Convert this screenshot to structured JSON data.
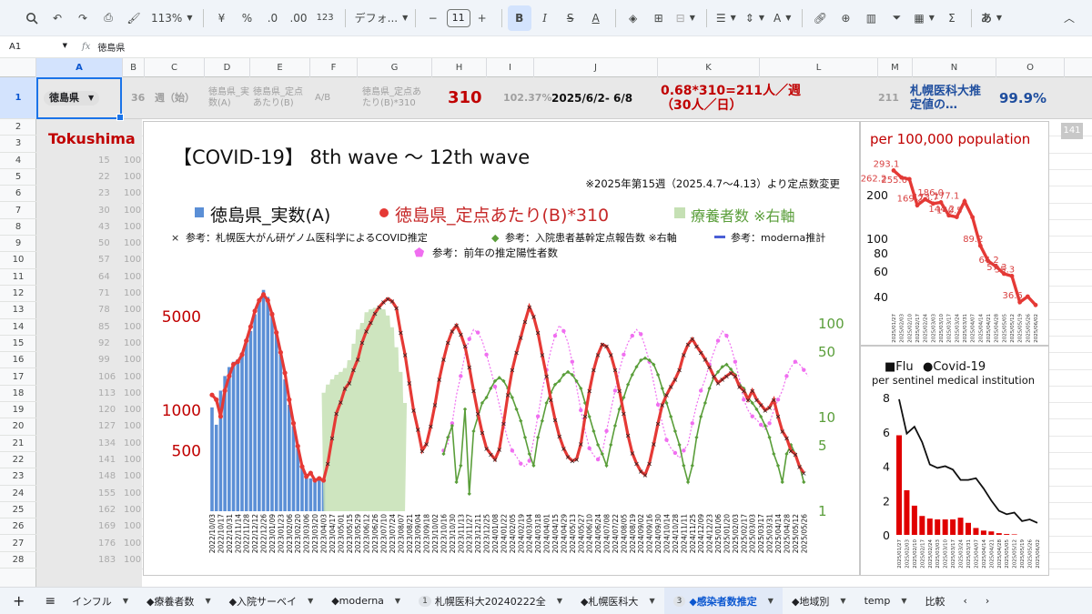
{
  "toolbar": {
    "zoom": "113%",
    "currency": "¥",
    "percent": "%",
    "dec_decrease": ".0",
    "dec_increase": ".00",
    "number_format": "123",
    "font_name": "デフォ...",
    "font_size": "11",
    "bold": "B",
    "italic": "I",
    "ime": "あ",
    "sum": "Σ"
  },
  "formula_bar": {
    "cell_ref": "A1",
    "fx": "fx",
    "value": "徳島県"
  },
  "columns": [
    "A",
    "B",
    "C",
    "D",
    "E",
    "F",
    "G",
    "H",
    "I",
    "J",
    "K",
    "L",
    "M",
    "N",
    "O"
  ],
  "rows": [
    "1",
    "2",
    "3",
    "4",
    "5",
    "6",
    "7",
    "8",
    "9",
    "10",
    "11",
    "12",
    "13",
    "14",
    "15",
    "16",
    "17",
    "18",
    "19",
    "20",
    "21",
    "22",
    "23",
    "24",
    "25",
    "26",
    "27",
    "28"
  ],
  "row1": {
    "a": "徳島県",
    "b": "36",
    "c": "週（始）",
    "d": "徳島県_実数(A)",
    "e": "徳島県_定点あたり(B)",
    "f": "A/B",
    "g": "徳島県_定点あたり(B)*310",
    "h": "310",
    "i": "102.37%",
    "j": "2025/6/2- 6/8",
    "k": "0.68*310=211人／週（30人／日）",
    "m": "211",
    "n": "札幌医科大推定値の…",
    "o": "99.9%"
  },
  "side_label": "Tokushima",
  "hidden_numbers": [
    "15",
    "22",
    "23",
    "30",
    "43",
    "50",
    "57",
    "64",
    "71",
    "78",
    "85",
    "92",
    "99",
    "106",
    "113",
    "120",
    "127",
    "134",
    "141",
    "148",
    "155",
    "162",
    "169",
    "176",
    "183"
  ],
  "hidden_col_b": "100",
  "scroll_badge": "141",
  "main_chart": {
    "title": "【COVID-19】 8th wave 〜 12th wave",
    "note": "※2025年第15週（2025.4.7〜4.13）より定点数変更",
    "legend1": [
      "徳島県_実数(A)",
      "徳島県_定点あたり(B)*310",
      "療養者数 ※右軸"
    ],
    "legend2": [
      "参考：札幌医大がん研ゲノム医科学によるCOVID推定",
      "参考：入院患者基幹定点報告数 ※右軸",
      "参考：moderna推計"
    ],
    "legend3": [
      "参考：前年の推定陽性者数"
    ],
    "left_ticks": [
      "5000",
      "1000",
      "500"
    ],
    "right_ticks": [
      "100",
      "50",
      "10",
      "5",
      "1"
    ],
    "x_labels": [
      "2022/10/03",
      "2022/10/17",
      "2022/10/31",
      "2022/11/14",
      "2022/11/28",
      "2022/12/12",
      "2022/12/26",
      "2023/01/09",
      "2023/01/23",
      "2023/02/06",
      "2023/02/20",
      "2023/03/06",
      "2023/03/20",
      "2023/04/03",
      "2023/04/17",
      "2023/05/01",
      "2023/05/15",
      "2023/05/29",
      "2023/06/12",
      "2023/06/26",
      "2023/07/10",
      "2023/07/24",
      "2023/08/07",
      "2023/08/21",
      "2023/09/04",
      "2023/09/18",
      "2023/10/02",
      "2023/10/16",
      "2023/10/30",
      "2023/11/13",
      "2023/11/27",
      "2023/12/11",
      "2023/12/25",
      "2024/01/08",
      "2024/01/22",
      "2024/02/05",
      "2024/02/19",
      "2024/03/04",
      "2024/03/18",
      "2024/04/01",
      "2024/04/15",
      "2024/04/29",
      "2024/05/13",
      "2024/05/27",
      "2024/06/10",
      "2024/06/24",
      "2024/07/08",
      "2024/07/22",
      "2024/08/05",
      "2024/08/19",
      "2024/09/02",
      "2024/09/16",
      "2024/09/30",
      "2024/10/14",
      "2024/10/28",
      "2024/11/11",
      "2024/11/25",
      "2024/12/09",
      "2024/12/23",
      "2025/01/06",
      "2025/01/20",
      "2025/02/03",
      "2025/02/17",
      "2025/03/03",
      "2025/03/17",
      "2025/03/31",
      "2025/04/14",
      "2025/04/28",
      "2025/05/12",
      "2025/05/26"
    ],
    "colors": {
      "actual": "#5b8fd6",
      "per_sentinel": "#e53935",
      "recuperating": "#c5e0b4",
      "sapporo": "#222222",
      "hospital": "#5a9e3a",
      "moderna": "#4a5fd6",
      "prev_year": "#f06ef0"
    }
  },
  "chart_per100k": {
    "title": "per 100,000 population",
    "ticks": [
      "200",
      "100",
      "80",
      "60",
      "40"
    ],
    "labels": [
      "293.1",
      "262.2",
      "255.6",
      "169.2",
      "186.0",
      "173.7",
      "177.1",
      "144.2",
      "140.5",
      "89.2",
      "64.2",
      "57.3",
      "55.3",
      "36.6"
    ],
    "x_labels": [
      "2025/01/27",
      "2025/02/03",
      "2025/02/10",
      "2025/02/17",
      "2025/02/24",
      "2025/03/03",
      "2025/03/10",
      "2025/03/17",
      "2025/03/24",
      "2025/03/31",
      "2025/04/07",
      "2025/04/14",
      "2025/04/21",
      "2025/04/28",
      "2025/05/05",
      "2025/05/12",
      "2025/05/19",
      "2025/05/26",
      "2025/06/02"
    ],
    "color": "#e53935"
  },
  "chart_flu": {
    "legend_flu": "■Flu",
    "legend_covid": "●Covid-19",
    "subtitle": "per sentinel medical institution",
    "ticks": [
      "8",
      "6",
      "4",
      "2",
      "0"
    ],
    "x_labels": [
      "2025/01/27",
      "2025/02/03",
      "2025/02/10",
      "2025/02/17",
      "2025/02/24",
      "2025/03/03",
      "2025/03/10",
      "2025/03/17",
      "2025/03/24",
      "2025/03/31",
      "2025/04/07",
      "2025/04/14",
      "2025/04/21",
      "2025/04/28",
      "2025/05/05",
      "2025/05/12",
      "2025/05/19",
      "2025/05/26",
      "2025/06/02"
    ],
    "flu_color": "#e00000",
    "covid_color": "#111111"
  },
  "chart_data": [
    {
      "type": "bar",
      "name": "main",
      "title": "【COVID-19】 8th wave 〜 12th wave",
      "log_scale": true,
      "weeks_total": 140,
      "series": [
        {
          "name": "徳島県_実数(A)",
          "kind": "bar",
          "start": 0,
          "values": [
            1050,
            780,
            1400,
            1800,
            2100,
            2300,
            2400,
            2700,
            3200,
            3900,
            5200,
            6800,
            7900,
            7000,
            5400,
            3900,
            2600,
            1700,
            1100,
            760,
            520,
            380,
            330,
            310,
            300,
            300,
            295
          ]
        },
        {
          "name": "療養者数 ※右軸",
          "kind": "area",
          "start": 26,
          "values": [
            18,
            22,
            25,
            28,
            30,
            33,
            40,
            60,
            85,
            100,
            130,
            140,
            145,
            150,
            140,
            120,
            90,
            55,
            30,
            14
          ]
        },
        {
          "name": "徳島県_定点あたり(B)*310",
          "kind": "line",
          "start": 0,
          "values": [
            1300,
            1200,
            900,
            1400,
            1800,
            2200,
            2300,
            2600,
            3300,
            4200,
            5500,
            6600,
            7300,
            6600,
            5200,
            3800,
            2700,
            1900,
            1200,
            800,
            540,
            380,
            320,
            340,
            300,
            310,
            300,
            400,
            620,
            950,
            1150,
            1450,
            1600,
            2000,
            2400,
            3200,
            3900,
            4500,
            5300,
            5900,
            6400,
            6800,
            6500,
            5800,
            3800,
            2600,
            1600,
            1000,
            720,
            500,
            560,
            760,
            1100,
            1700,
            2400,
            3200,
            3900,
            4300,
            3700,
            3000,
            2100,
            1400,
            950,
            680,
            520,
            470,
            430,
            510,
            800,
            1300,
            2000,
            2700,
            3500,
            4600,
            5900,
            5000,
            3800,
            2600,
            1800,
            1200,
            850,
            640,
            520,
            450,
            420,
            430,
            560,
            900,
            1400,
            2000,
            2600,
            3100,
            3000,
            2600,
            2000,
            1400,
            950,
            650,
            480,
            400,
            350,
            330,
            400,
            560,
            800,
            1100,
            1300,
            1500,
            1700,
            2000,
            2600,
            3100,
            3400,
            3000,
            2700,
            2400,
            2100,
            1800,
            1600,
            1700,
            1800,
            1900,
            1800,
            1500,
            1400,
            1200,
            1400,
            1200,
            1100,
            1000,
            1050,
            1200,
            900,
            700,
            620,
            500,
            470,
            380,
            340
          ]
        },
        {
          "name": "参考：前年の推定陽性者数",
          "kind": "line",
          "start": 54,
          "values": [
            500,
            560,
            800,
            1300,
            1800,
            2600,
            3400,
            4000,
            3800,
            3300,
            2600,
            2000,
            1500,
            1100,
            800,
            600,
            500,
            450,
            400,
            380,
            420,
            600,
            900,
            1400,
            2000,
            2800,
            3600,
            4300,
            3900,
            3200,
            2300,
            1500,
            1000,
            700,
            520,
            460,
            430,
            480,
            700,
            1000,
            1400,
            2000,
            2600,
            3200,
            3600,
            4000,
            3700,
            3000,
            2300,
            1600,
            1100,
            800,
            600,
            520,
            480,
            440,
            500,
            560,
            800,
            1100,
            1400,
            1700,
            2200,
            2700,
            3300,
            3900,
            3600,
            3000,
            2300,
            1700,
            1200,
            1000,
            900,
            850,
            780,
            720,
            800,
            1000,
            1200,
            1400,
            1800,
            2100,
            2300,
            2200,
            2000,
            1800
          ]
        },
        {
          "name": "参考：入院患者基幹定点報告数 ※右軸",
          "kind": "line",
          "start": 54,
          "values": [
            4,
            6,
            8,
            2,
            3,
            12,
            1.5,
            7,
            10,
            14,
            16,
            20,
            24,
            26,
            24,
            20,
            16,
            12,
            9,
            6,
            4,
            3,
            6,
            9,
            14,
            18,
            22,
            24,
            28,
            30,
            28,
            24,
            20,
            14,
            10,
            7,
            5,
            4,
            3,
            5,
            8,
            12,
            16,
            22,
            28,
            34,
            40,
            42,
            40,
            36,
            28,
            20,
            14,
            10,
            7,
            5,
            3,
            2,
            3,
            6,
            10,
            14,
            20,
            26,
            30,
            34,
            36,
            32,
            28,
            22,
            20,
            16,
            14,
            12,
            10,
            8,
            6,
            4,
            3,
            2,
            4,
            5,
            4,
            3,
            2
          ]
        }
      ]
    },
    {
      "type": "line",
      "name": "per_100k",
      "title": "per 100,000 population",
      "log_scale": true,
      "x": [
        "2025/01/27",
        "2025/02/03",
        "2025/02/10",
        "2025/02/17",
        "2025/02/24",
        "2025/03/03",
        "2025/03/10",
        "2025/03/17",
        "2025/03/24",
        "2025/03/31",
        "2025/04/07",
        "2025/04/14",
        "2025/04/21",
        "2025/04/28",
        "2025/05/05",
        "2025/05/12",
        "2025/05/19",
        "2025/05/26",
        "2025/06/02"
      ],
      "values": [
        293.1,
        262.2,
        255.6,
        169.2,
        186.0,
        173.7,
        177.1,
        144.2,
        140.5,
        180.0,
        140.0,
        89.2,
        70.0,
        64.2,
        57.3,
        55.3,
        36.6,
        40.0,
        35.0
      ]
    },
    {
      "type": "bar",
      "name": "flu_covid",
      "x": [
        "2025/01/27",
        "2025/02/03",
        "2025/02/10",
        "2025/02/17",
        "2025/02/24",
        "2025/03/03",
        "2025/03/10",
        "2025/03/17",
        "2025/03/24",
        "2025/03/31",
        "2025/04/07",
        "2025/04/14",
        "2025/04/21",
        "2025/04/28",
        "2025/05/05",
        "2025/05/12",
        "2025/05/19",
        "2025/05/26",
        "2025/06/02"
      ],
      "ylim": [
        0,
        8
      ],
      "series": [
        {
          "name": "Flu",
          "kind": "bar",
          "values": [
            5.8,
            2.6,
            1.7,
            1.1,
            0.95,
            0.9,
            0.9,
            0.9,
            1.0,
            0.7,
            0.4,
            0.25,
            0.2,
            0.1,
            0.05,
            0.03,
            0,
            0,
            0
          ]
        },
        {
          "name": "Covid-19",
          "kind": "line",
          "values": [
            7.9,
            5.9,
            6.3,
            5.4,
            4.1,
            3.9,
            4.0,
            3.8,
            3.2,
            3.2,
            3.3,
            2.7,
            2.0,
            1.4,
            1.2,
            1.3,
            0.8,
            0.9,
            0.7
          ]
        }
      ]
    }
  ],
  "tabs": [
    "インフル",
    "◆療養者数",
    "◆入院サーベイ",
    "◆moderna",
    "札幌医科大20240222全",
    "◆札幌医科大",
    "◆感染者数推定",
    "◆地域別",
    "temp",
    "比較"
  ],
  "tab_badges": {
    "4": "1",
    "6": "3"
  }
}
